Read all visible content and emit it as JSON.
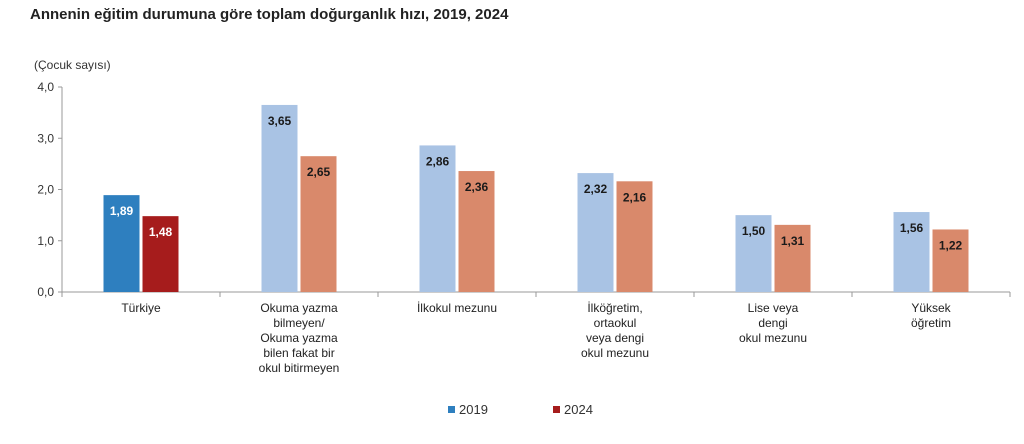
{
  "chart_data": {
    "type": "bar",
    "title": "Annenin eğitim durumuna göre toplam doğurganlık hızı, 2019, 2024",
    "ylabel": "(Çocuk sayısı)",
    "ylim": [
      0,
      4
    ],
    "yticks": [
      "0,0",
      "1,0",
      "2,0",
      "3,0",
      "4,0"
    ],
    "categories": [
      [
        "Türkiye"
      ],
      [
        "Okuma yazma",
        "bilmeyen/",
        "Okuma yazma",
        "bilen fakat bir",
        "okul bitirmeyen"
      ],
      [
        "İlkokul mezunu"
      ],
      [
        "İlköğretim,",
        "ortaokul",
        "veya dengi",
        "okul mezunu"
      ],
      [
        "Lise veya",
        "dengi",
        "okul mezunu"
      ],
      [
        "Yüksek",
        "öğretim"
      ]
    ],
    "series": [
      {
        "name": "2019",
        "values": [
          1.89,
          3.65,
          2.86,
          2.32,
          1.5,
          1.56
        ],
        "labels": [
          "1,89",
          "3,65",
          "2,86",
          "2,32",
          "1,50",
          "1,56"
        ]
      },
      {
        "name": "2024",
        "values": [
          1.48,
          2.65,
          2.36,
          2.16,
          1.31,
          1.22
        ],
        "labels": [
          "1,48",
          "2,65",
          "2,36",
          "2,16",
          "1,31",
          "1,22"
        ]
      }
    ],
    "colors": {
      "s2019_highlight": "#2e7fbf",
      "s2024_highlight": "#a61c1c",
      "s2019": "#a9c3e4",
      "s2024": "#d9896b"
    },
    "legend": [
      "2019",
      "2024"
    ],
    "legend_colors": [
      "#2e7fbf",
      "#a61c1c"
    ],
    "legend_position": "bottom",
    "grid": false
  }
}
